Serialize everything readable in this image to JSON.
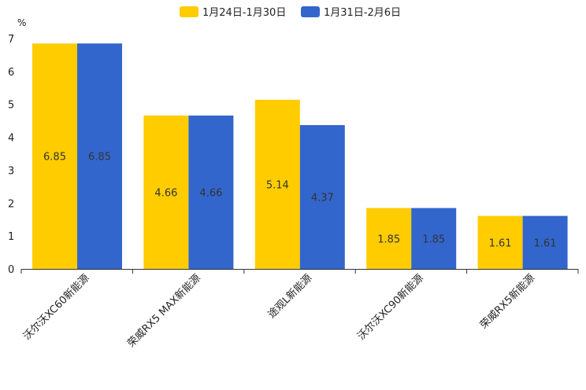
{
  "chart_data": {
    "type": "bar",
    "title": "",
    "ylabel": "%",
    "xlabel": "",
    "ylim": [
      0,
      7
    ],
    "yticks": [
      0,
      1,
      2,
      3,
      4,
      5,
      6,
      7
    ],
    "legend_position": "top-center",
    "grid": false,
    "categories": [
      "沃尔沃XC60新能源",
      "荣威RX5 MAX新能源",
      "途观L新能源",
      "沃尔沃XC90新能源",
      "荣威RX5新能源"
    ],
    "series": [
      {
        "name": "1月24日-1月30日",
        "color": "#FFCC00",
        "values": [
          6.85,
          4.66,
          5.14,
          1.85,
          1.61
        ],
        "labels": [
          "6.85",
          "4.66",
          "5.14",
          "1.85",
          "1.61"
        ]
      },
      {
        "name": "1月31日-2月6日",
        "color": "#3366CC",
        "values": [
          6.85,
          4.66,
          4.37,
          1.85,
          1.61
        ],
        "labels": [
          "6.85",
          "4.66",
          "4.37",
          "1.85",
          "1.61"
        ]
      }
    ]
  }
}
